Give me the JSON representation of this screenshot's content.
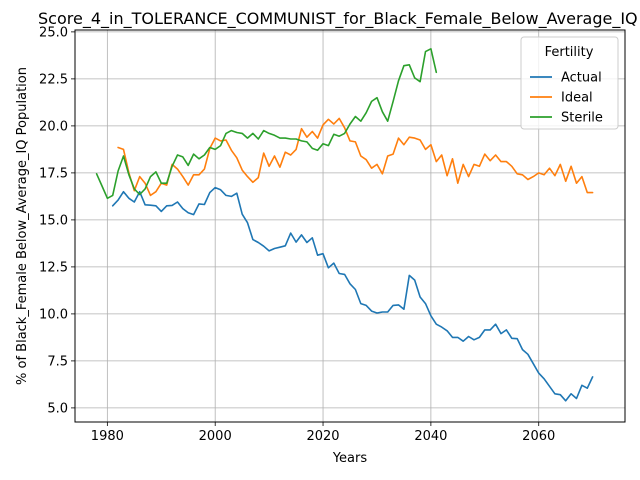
{
  "chart_data": {
    "type": "line",
    "title": "Score_4_in_TOLERANCE_COMMUNIST_for_Black_Female_Below_Average_IQ",
    "xlabel": "Years",
    "ylabel": "% of Black_Female Below_Average_IQ Population",
    "xlim": [
      1974,
      2076
    ],
    "ylim": [
      4.25,
      25.1
    ],
    "xticks": [
      1980,
      2000,
      2020,
      2040,
      2060
    ],
    "yticks": [
      5.0,
      7.5,
      10.0,
      12.5,
      15.0,
      17.5,
      20.0,
      22.5,
      25.0
    ],
    "grid": true,
    "legend": {
      "title": "Fertility",
      "position": "top-right"
    },
    "series": [
      {
        "name": "Actual",
        "color": "#1f77b4",
        "x": [
          1981,
          1982,
          1983,
          1984,
          1985,
          1986,
          1987,
          1988,
          1989,
          1990,
          1991,
          1992,
          1993,
          1994,
          1995,
          1996,
          1997,
          1998,
          1999,
          2000,
          2001,
          2002,
          2003,
          2004,
          2005,
          2006,
          2007,
          2008,
          2009,
          2010,
          2011,
          2012,
          2013,
          2014,
          2015,
          2016,
          2017,
          2018,
          2019,
          2020,
          2021,
          2022,
          2023,
          2024,
          2025,
          2026,
          2027,
          2028,
          2029,
          2030,
          2031,
          2032,
          2033,
          2034,
          2035,
          2036,
          2037,
          2038,
          2039,
          2040,
          2041,
          2042,
          2043,
          2044,
          2045,
          2046,
          2047,
          2048,
          2049,
          2050,
          2051,
          2052,
          2053,
          2054,
          2055,
          2056,
          2057,
          2058,
          2059,
          2060,
          2061,
          2062,
          2063,
          2064,
          2065,
          2066,
          2067,
          2068,
          2069,
          2070
        ],
        "y": [
          15.75,
          16.05,
          16.5,
          16.15,
          15.95,
          16.5,
          15.8,
          15.78,
          15.75,
          15.45,
          15.75,
          15.77,
          15.95,
          15.6,
          15.38,
          15.28,
          15.85,
          15.82,
          16.45,
          16.72,
          16.6,
          16.3,
          16.25,
          16.42,
          15.3,
          14.85,
          13.95,
          13.8,
          13.6,
          13.35,
          13.48,
          13.55,
          13.62,
          14.3,
          13.82,
          14.2,
          13.8,
          14.05,
          13.12,
          13.2,
          12.45,
          12.7,
          12.15,
          12.1,
          11.6,
          11.3,
          10.55,
          10.45,
          10.15,
          10.05,
          10.1,
          10.1,
          10.45,
          10.48,
          10.25,
          12.05,
          11.8,
          10.9,
          10.55,
          9.9,
          9.45,
          9.3,
          9.1,
          8.75,
          8.75,
          8.55,
          8.8,
          8.62,
          8.75,
          9.15,
          9.15,
          9.45,
          8.95,
          9.15,
          8.7,
          8.68,
          8.1,
          7.85,
          7.35,
          6.85,
          6.55,
          6.15,
          5.75,
          5.7,
          5.38,
          5.75,
          5.5,
          6.2,
          6.05,
          6.65
        ]
      },
      {
        "name": "Ideal",
        "color": "#ff7f0e",
        "x": [
          1982,
          1983,
          1984,
          1985,
          1986,
          1987,
          1988,
          1989,
          1990,
          1991,
          1992,
          1993,
          1994,
          1995,
          1996,
          1997,
          1998,
          1999,
          2000,
          2001,
          2002,
          2003,
          2004,
          2005,
          2006,
          2007,
          2008,
          2009,
          2010,
          2011,
          2012,
          2013,
          2014,
          2015,
          2016,
          2017,
          2018,
          2019,
          2020,
          2021,
          2022,
          2023,
          2024,
          2025,
          2026,
          2027,
          2028,
          2029,
          2030,
          2031,
          2032,
          2033,
          2034,
          2035,
          2036,
          2037,
          2038,
          2039,
          2040,
          2041,
          2042,
          2043,
          2044,
          2045,
          2046,
          2047,
          2048,
          2049,
          2050,
          2051,
          2052,
          2053,
          2054,
          2055,
          2056,
          2057,
          2058,
          2059,
          2060,
          2061,
          2062,
          2063,
          2064,
          2065,
          2066,
          2067,
          2068,
          2069,
          2070
        ],
        "y": [
          18.85,
          18.75,
          17.5,
          16.55,
          17.3,
          16.95,
          16.3,
          16.5,
          16.95,
          16.85,
          17.95,
          17.7,
          17.3,
          16.85,
          17.4,
          17.4,
          17.7,
          18.8,
          19.35,
          19.2,
          19.25,
          18.7,
          18.3,
          17.65,
          17.3,
          17.0,
          17.25,
          18.55,
          17.85,
          18.4,
          17.8,
          18.6,
          18.45,
          18.75,
          19.85,
          19.4,
          19.7,
          19.35,
          20.05,
          20.35,
          20.1,
          20.4,
          19.9,
          19.2,
          19.15,
          18.4,
          18.2,
          17.75,
          17.95,
          17.45,
          18.4,
          18.5,
          19.35,
          19.0,
          19.4,
          19.35,
          19.25,
          18.75,
          19.0,
          18.1,
          18.45,
          17.35,
          18.25,
          16.95,
          17.95,
          17.3,
          17.95,
          17.85,
          18.5,
          18.15,
          18.45,
          18.1,
          18.1,
          17.85,
          17.45,
          17.4,
          17.15,
          17.3,
          17.5,
          17.4,
          17.75,
          17.35,
          17.95,
          17.05,
          17.85,
          16.95,
          17.3,
          16.45,
          16.45
        ]
      },
      {
        "name": "Sterile",
        "color": "#2ca02c",
        "x": [
          1978,
          1979,
          1980,
          1981,
          1982,
          1983,
          1984,
          1985,
          1986,
          1987,
          1988,
          1989,
          1990,
          1991,
          1992,
          1993,
          1994,
          1995,
          1996,
          1997,
          1998,
          1999,
          2000,
          2001,
          2002,
          2003,
          2004,
          2005,
          2006,
          2007,
          2008,
          2009,
          2010,
          2011,
          2012,
          2013,
          2014,
          2015,
          2016,
          2017,
          2018,
          2019,
          2020,
          2021,
          2022,
          2023,
          2024,
          2025,
          2026,
          2027,
          2028,
          2029,
          2030,
          2031,
          2032,
          2033,
          2034,
          2035,
          2036,
          2037,
          2038,
          2039,
          2040,
          2041
        ],
        "y": [
          17.45,
          16.8,
          16.15,
          16.3,
          17.6,
          18.4,
          17.4,
          16.65,
          16.35,
          16.65,
          17.3,
          17.55,
          16.95,
          16.95,
          17.85,
          18.45,
          18.35,
          17.9,
          18.5,
          18.25,
          18.45,
          18.85,
          18.75,
          18.95,
          19.6,
          19.75,
          19.65,
          19.6,
          19.35,
          19.6,
          19.3,
          19.75,
          19.6,
          19.5,
          19.35,
          19.35,
          19.3,
          19.3,
          19.2,
          19.15,
          18.8,
          18.7,
          19.05,
          18.95,
          19.55,
          19.45,
          19.6,
          20.1,
          20.5,
          20.25,
          20.7,
          21.3,
          21.5,
          20.75,
          20.25,
          21.3,
          22.4,
          23.2,
          23.25,
          22.55,
          22.35,
          23.95,
          24.1,
          22.85
        ]
      }
    ]
  }
}
